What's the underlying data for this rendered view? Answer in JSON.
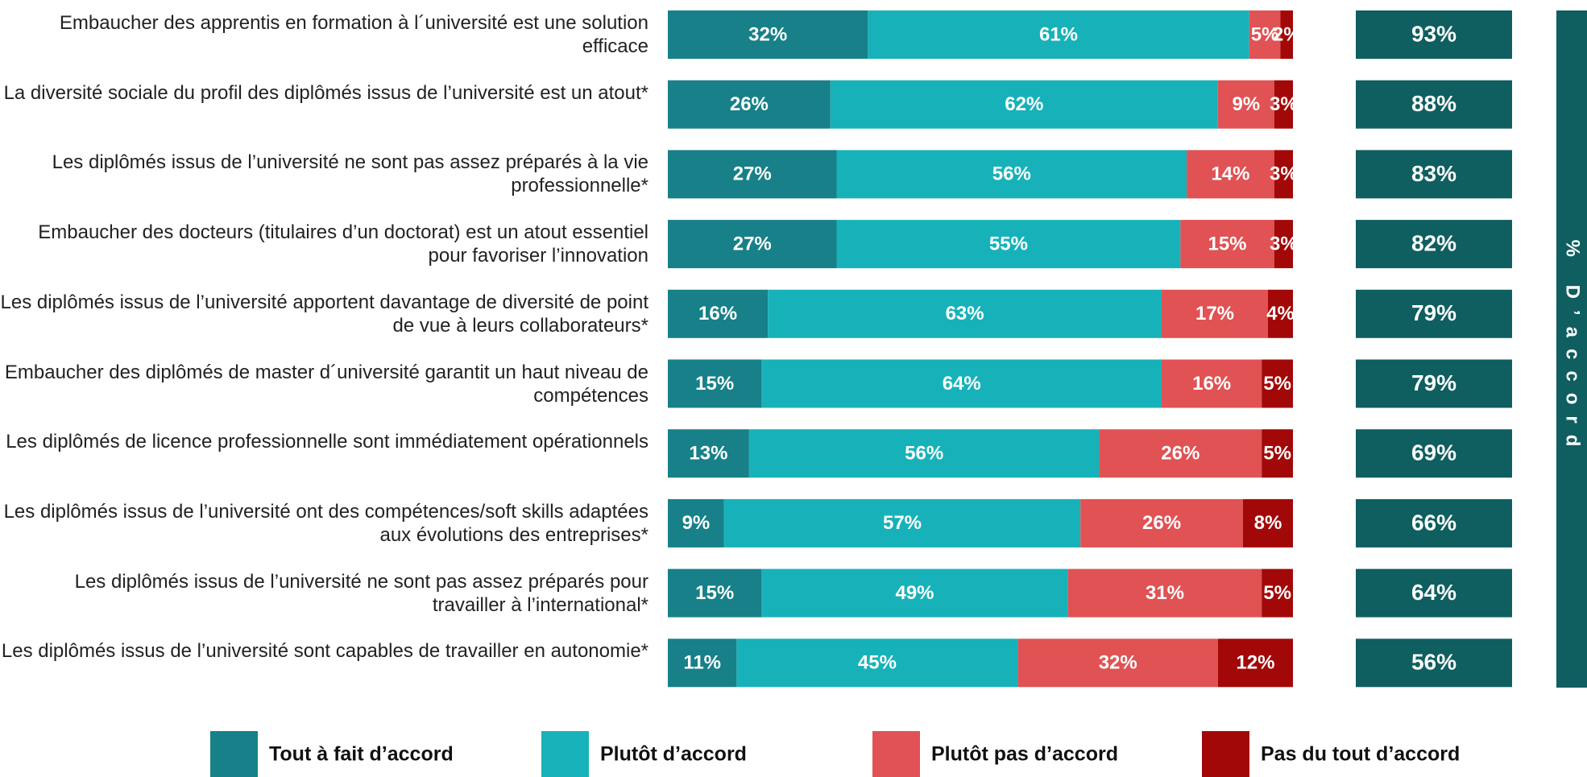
{
  "chart_data": {
    "type": "bar",
    "orientation": "horizontal",
    "stacked": true,
    "categories": [
      "Embaucher des apprentis en formation à l´université est une solution efficace",
      "La diversité sociale du profil des diplômés issus de l’université est un atout*",
      "Les diplômés issus de l’université ne sont pas assez préparés à la vie professionnelle*",
      "Embaucher des docteurs (titulaires d’un doctorat) est un atout essentiel pour favoriser l’innovation",
      "Les diplômés issus de l’université apportent davantage de diversité de point de vue à leurs collaborateurs*",
      "Embaucher des diplômés de master d´université garantit un haut niveau de compétences",
      "Les diplômés de licence professionnelle sont immédiatement opérationnels",
      "Les diplômés issus de l’université ont des compétences/soft skills adaptées aux évolutions des entreprises*",
      "Les diplômés issus de l’université ne sont pas assez préparés pour travailler à l’international*",
      "Les diplômés issus de l’université sont capables de travailler en autonomie*"
    ],
    "series": [
      {
        "name": "Tout à fait d’accord",
        "color": "#178088",
        "values": [
          32,
          26,
          27,
          27,
          16,
          15,
          13,
          9,
          15,
          11
        ],
        "value_labels": [
          "32%",
          "26%",
          "27%",
          "27%",
          "16%",
          "15%",
          "13%",
          "9%",
          "15%",
          "11%"
        ]
      },
      {
        "name": "Plutôt d’accord",
        "color": "#17b2b9",
        "values": [
          61,
          62,
          56,
          55,
          63,
          64,
          56,
          57,
          49,
          45
        ],
        "value_labels": [
          "61%",
          "62%",
          "56%",
          "55%",
          "63%",
          "64%",
          "56%",
          "57%",
          "49%",
          "45%"
        ]
      },
      {
        "name": "Plutôt pas d’accord",
        "color": "#e05253",
        "values": [
          5,
          9,
          14,
          15,
          17,
          16,
          26,
          26,
          31,
          32
        ],
        "value_labels": [
          "5%",
          "9%",
          "14%",
          "15%",
          "17%",
          "16%",
          "26%",
          "26%",
          "31%",
          "32%"
        ]
      },
      {
        "name": "Pas du tout d’accord",
        "color": "#a30808",
        "values": [
          2,
          3,
          3,
          3,
          4,
          5,
          5,
          8,
          5,
          12
        ],
        "value_labels": [
          "2%",
          "3%",
          "3%",
          "3%",
          "4%",
          "5%",
          "5%",
          "8%",
          "5%",
          "12%"
        ]
      }
    ],
    "totals": {
      "name": "% D’accord",
      "color": "#0f5e60",
      "values": [
        93,
        88,
        83,
        82,
        79,
        79,
        69,
        66,
        64,
        56
      ],
      "value_labels": [
        "93%",
        "88%",
        "83%",
        "82%",
        "79%",
        "79%",
        "69%",
        "66%",
        "64%",
        "56%"
      ]
    }
  }
}
